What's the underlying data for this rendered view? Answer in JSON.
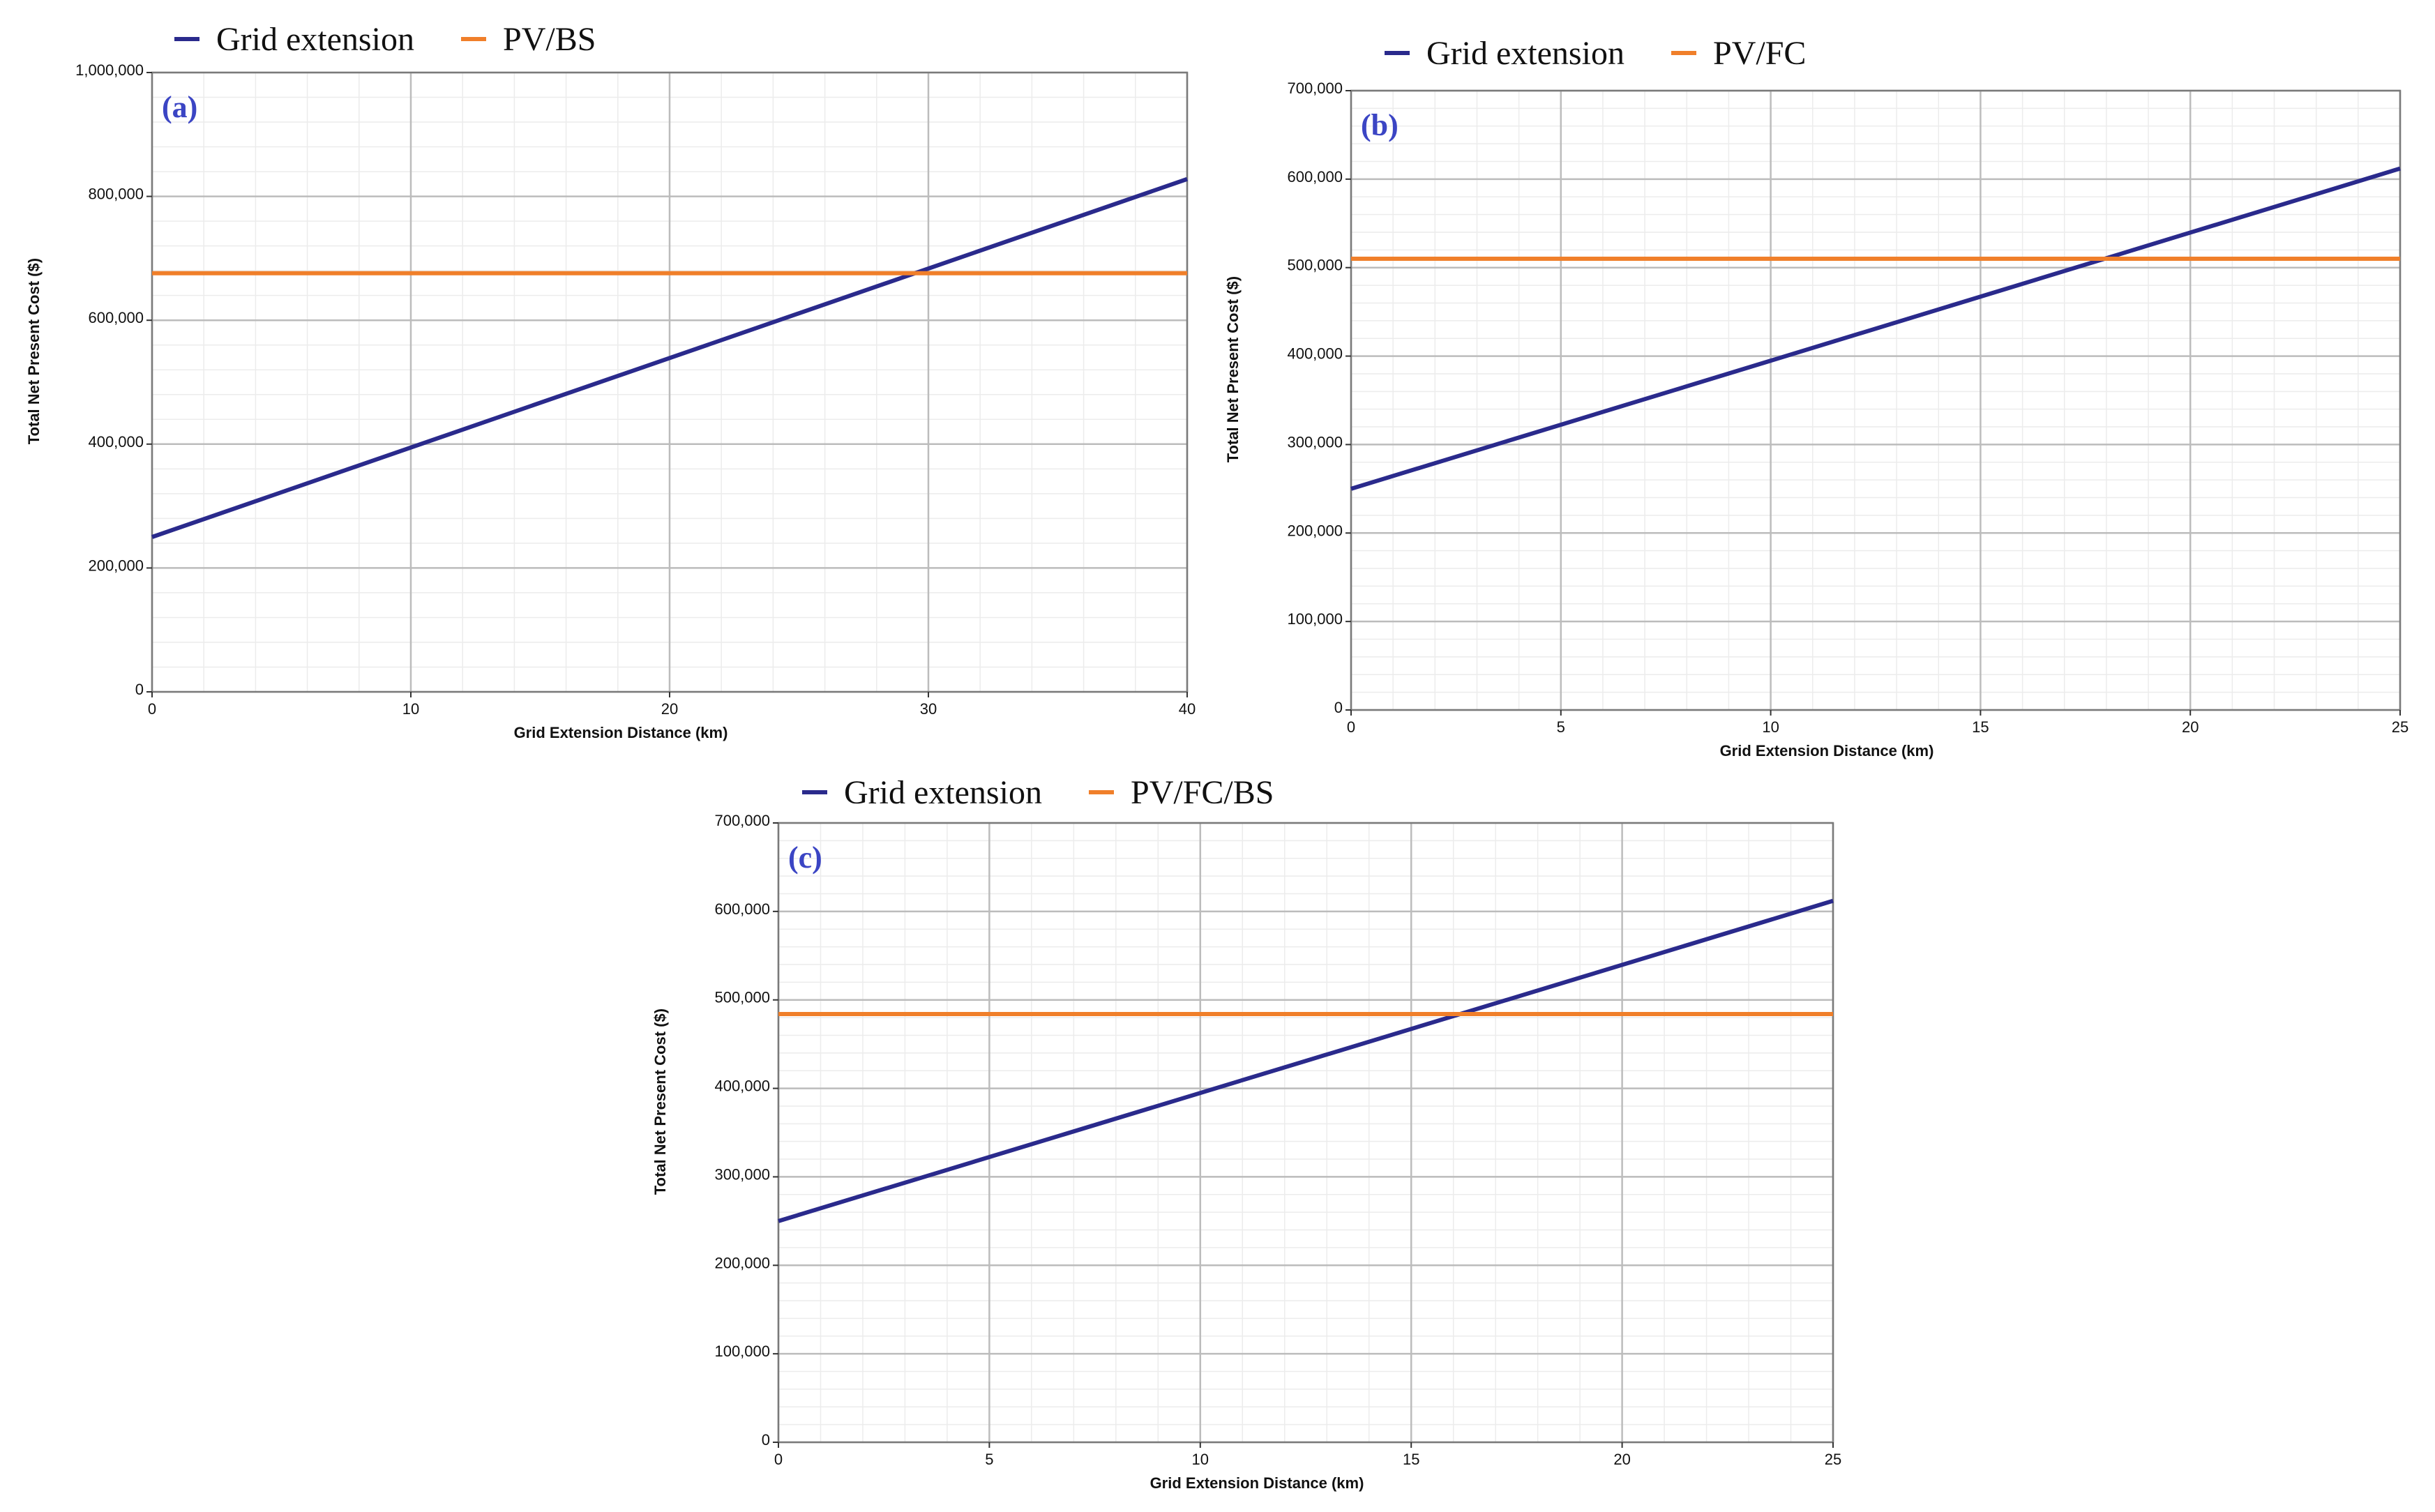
{
  "colors": {
    "grid_line": "#2a2a8c",
    "alt_line": "#f07f2a",
    "panel_label": "#3b45c4",
    "major_grid": "#bcbcbc",
    "minor_grid": "#ececec",
    "frame": "#7a7a7a"
  },
  "chart_data": [
    {
      "type": "line",
      "panel_label": "(a)",
      "xlabel": "Grid Extension Distance (km)",
      "ylabel": "Total Net Present Cost ($)",
      "xlim": [
        0,
        40
      ],
      "ylim": [
        0,
        1000000
      ],
      "x_ticks": [
        0,
        10,
        20,
        30,
        40
      ],
      "x_tick_labels": [
        "0",
        "10",
        "20",
        "30",
        "40"
      ],
      "y_ticks": [
        0,
        200000,
        400000,
        600000,
        800000,
        1000000
      ],
      "y_tick_labels": [
        "0",
        "200,000",
        "400,000",
        "600,000",
        "800,000",
        "1,000,000"
      ],
      "x_minor_step": 2,
      "y_minor_step": 40000,
      "legend": [
        "Grid extension",
        "PV/BS"
      ],
      "series": [
        {
          "name": "Grid extension",
          "x": [
            0,
            40
          ],
          "y": [
            250000,
            828000
          ]
        },
        {
          "name": "PV/BS",
          "x": [
            0,
            40
          ],
          "y": [
            676000,
            676000
          ]
        }
      ]
    },
    {
      "type": "line",
      "panel_label": "(b)",
      "xlabel": "Grid Extension Distance (km)",
      "ylabel": "Total Net Present Cost ($)",
      "xlim": [
        0,
        25
      ],
      "ylim": [
        0,
        700000
      ],
      "x_ticks": [
        0,
        5,
        10,
        15,
        20,
        25
      ],
      "x_tick_labels": [
        "0",
        "5",
        "10",
        "15",
        "20",
        "25"
      ],
      "y_ticks": [
        0,
        100000,
        200000,
        300000,
        400000,
        500000,
        600000,
        700000
      ],
      "y_tick_labels": [
        "0",
        "100,000",
        "200,000",
        "300,000",
        "400,000",
        "500,000",
        "600,000",
        "700,000"
      ],
      "x_minor_step": 1,
      "y_minor_step": 20000,
      "legend": [
        "Grid extension",
        "PV/FC"
      ],
      "series": [
        {
          "name": "Grid extension",
          "x": [
            0,
            25
          ],
          "y": [
            250000,
            612000
          ]
        },
        {
          "name": "PV/FC",
          "x": [
            0,
            25
          ],
          "y": [
            510000,
            510000
          ]
        }
      ]
    },
    {
      "type": "line",
      "panel_label": "(c)",
      "xlabel": "Grid Extension Distance (km)",
      "ylabel": "Total Net Present Cost ($)",
      "xlim": [
        0,
        25
      ],
      "ylim": [
        0,
        700000
      ],
      "x_ticks": [
        0,
        5,
        10,
        15,
        20,
        25
      ],
      "x_tick_labels": [
        "0",
        "5",
        "10",
        "15",
        "20",
        "25"
      ],
      "y_ticks": [
        0,
        100000,
        200000,
        300000,
        400000,
        500000,
        600000,
        700000
      ],
      "y_tick_labels": [
        "0",
        "100,000",
        "200,000",
        "300,000",
        "400,000",
        "500,000",
        "600,000",
        "700,000"
      ],
      "x_minor_step": 1,
      "y_minor_step": 20000,
      "legend": [
        "Grid extension",
        "PV/FC/BS"
      ],
      "series": [
        {
          "name": "Grid extension",
          "x": [
            0,
            25
          ],
          "y": [
            250000,
            612000
          ]
        },
        {
          "name": "PV/FC/BS",
          "x": [
            0,
            25
          ],
          "y": [
            484000,
            484000
          ]
        }
      ]
    }
  ]
}
